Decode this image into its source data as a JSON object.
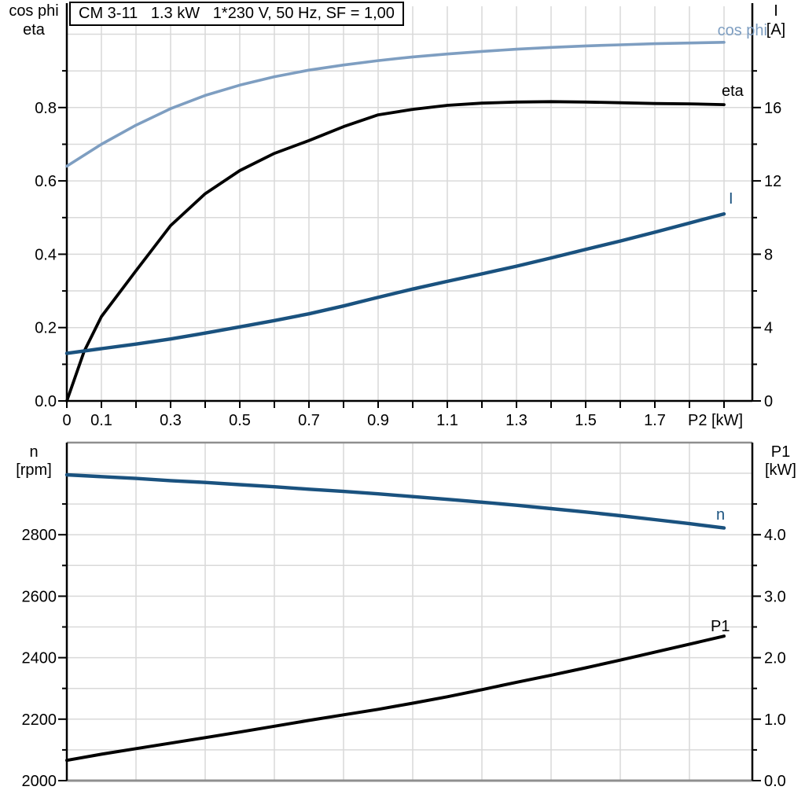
{
  "colors": {
    "light_blue": "#7E9EC1",
    "dark_blue": "#1A527F",
    "black": "#000000",
    "grid": "#D9D9D9",
    "border_gray": "#8F8F8F"
  },
  "chart_data": [
    {
      "type": "line",
      "title": "CM 3-11   1.3 kW   1*230 V, 50 Hz, SF = 1,00",
      "x": {
        "title": "P2 [kW]",
        "min": 0,
        "max": 1.98,
        "grid_step": 0.1,
        "labeled_ticks": [
          [
            0,
            "0"
          ],
          [
            0.1,
            "0.1"
          ],
          [
            0.3,
            "0.3"
          ],
          [
            0.5,
            "0.5"
          ],
          [
            0.7,
            "0.7"
          ],
          [
            0.9,
            "0.9"
          ],
          [
            1.1,
            "1.1"
          ],
          [
            1.3,
            "1.3"
          ],
          [
            1.5,
            "1.5"
          ],
          [
            1.7,
            "1.7"
          ]
        ]
      },
      "y_left": {
        "title": [
          "cos phi",
          "eta"
        ],
        "min": 0,
        "max": 1.08,
        "major_ticks": [
          [
            0,
            "0.0"
          ],
          [
            0.2,
            "0.2"
          ],
          [
            0.4,
            "0.4"
          ],
          [
            0.6,
            "0.6"
          ],
          [
            0.8,
            "0.8"
          ]
        ],
        "minor_ticks": [
          0.1,
          0.3,
          0.5,
          0.7,
          0.9
        ],
        "grid_step": 0.1
      },
      "y_right": {
        "title": [
          "I",
          "[A]"
        ],
        "min": 0,
        "max": 21.5,
        "major_ticks": [
          [
            0,
            "0"
          ],
          [
            4,
            "4"
          ],
          [
            8,
            "8"
          ],
          [
            12,
            "12"
          ],
          [
            16,
            "16"
          ]
        ],
        "minor_ticks": [
          2,
          6,
          10,
          14,
          18
        ]
      },
      "series": [
        {
          "name": "cos phi",
          "axis": "left",
          "color": "#7E9EC1",
          "width": 3.6,
          "x": [
            0,
            0.1,
            0.2,
            0.3,
            0.4,
            0.5,
            0.6,
            0.7,
            0.8,
            0.9,
            1.0,
            1.1,
            1.2,
            1.3,
            1.4,
            1.5,
            1.6,
            1.7,
            1.8,
            1.9
          ],
          "y": [
            0.64,
            0.7,
            0.752,
            0.797,
            0.833,
            0.861,
            0.884,
            0.902,
            0.916,
            0.928,
            0.938,
            0.946,
            0.953,
            0.959,
            0.964,
            0.968,
            0.971,
            0.974,
            0.976,
            0.978
          ]
        },
        {
          "name": "eta",
          "axis": "left",
          "color": "#000000",
          "width": 3.8,
          "x": [
            0,
            0.05,
            0.1,
            0.2,
            0.3,
            0.4,
            0.5,
            0.6,
            0.7,
            0.8,
            0.9,
            1.0,
            1.1,
            1.2,
            1.3,
            1.4,
            1.5,
            1.6,
            1.7,
            1.8,
            1.9
          ],
          "y": [
            0,
            0.135,
            0.23,
            0.355,
            0.478,
            0.565,
            0.628,
            0.675,
            0.71,
            0.748,
            0.78,
            0.795,
            0.806,
            0.812,
            0.815,
            0.816,
            0.815,
            0.813,
            0.811,
            0.81,
            0.808
          ]
        },
        {
          "name": "I",
          "axis": "right",
          "color": "#1A527F",
          "width": 4.4,
          "x": [
            0,
            0.1,
            0.2,
            0.3,
            0.4,
            0.5,
            0.6,
            0.7,
            0.8,
            0.9,
            1.0,
            1.1,
            1.2,
            1.3,
            1.4,
            1.5,
            1.6,
            1.7,
            1.8,
            1.9
          ],
          "y": [
            2.6,
            2.85,
            3.1,
            3.38,
            3.7,
            4.04,
            4.38,
            4.75,
            5.18,
            5.65,
            6.1,
            6.52,
            6.93,
            7.35,
            7.8,
            8.26,
            8.72,
            9.2,
            9.7,
            10.2
          ]
        }
      ]
    },
    {
      "type": "line",
      "title": "",
      "x": {
        "title": "",
        "min": 0,
        "max": 1.98,
        "grid_step": 0.2,
        "labeled_ticks": []
      },
      "y_left": {
        "title": [
          "n",
          "[rpm]"
        ],
        "min": 2000,
        "max": 3100,
        "major_ticks": [
          [
            2000,
            "2000"
          ],
          [
            2200,
            "2200"
          ],
          [
            2400,
            "2400"
          ],
          [
            2600,
            "2600"
          ],
          [
            2800,
            "2800"
          ]
        ],
        "minor_ticks": [
          2100,
          2300,
          2500,
          2700,
          2900
        ],
        "grid_step": 100
      },
      "y_right": {
        "title": [
          "P1",
          "[kW]"
        ],
        "min": 0,
        "max": 5.5,
        "major_ticks": [
          [
            0,
            "0.0"
          ],
          [
            1,
            "1.0"
          ],
          [
            2,
            "2.0"
          ],
          [
            3,
            "3.0"
          ],
          [
            4,
            "4.0"
          ]
        ],
        "minor_ticks": [
          0.5,
          1.5,
          2.5,
          3.5,
          4.5
        ]
      },
      "series": [
        {
          "name": "n",
          "axis": "left",
          "color": "#1A527F",
          "width": 4.4,
          "x": [
            0,
            0.1,
            0.2,
            0.3,
            0.4,
            0.5,
            0.6,
            0.7,
            0.8,
            0.9,
            1.0,
            1.1,
            1.2,
            1.3,
            1.4,
            1.5,
            1.6,
            1.7,
            1.8,
            1.9
          ],
          "y": [
            2995,
            2989,
            2983,
            2976,
            2970,
            2963,
            2956,
            2948,
            2941,
            2933,
            2924,
            2915,
            2906,
            2896,
            2885,
            2874,
            2862,
            2849,
            2836,
            2822
          ]
        },
        {
          "name": "P1",
          "axis": "right",
          "color": "#000000",
          "width": 4.0,
          "x": [
            0,
            0.1,
            0.2,
            0.3,
            0.4,
            0.5,
            0.6,
            0.7,
            0.8,
            0.9,
            1.0,
            1.1,
            1.2,
            1.3,
            1.4,
            1.5,
            1.6,
            1.7,
            1.8,
            1.9
          ],
          "y": [
            0.33,
            0.43,
            0.52,
            0.61,
            0.7,
            0.79,
            0.885,
            0.98,
            1.07,
            1.16,
            1.26,
            1.365,
            1.48,
            1.6,
            1.715,
            1.835,
            1.96,
            2.09,
            2.22,
            2.35
          ]
        }
      ]
    }
  ]
}
